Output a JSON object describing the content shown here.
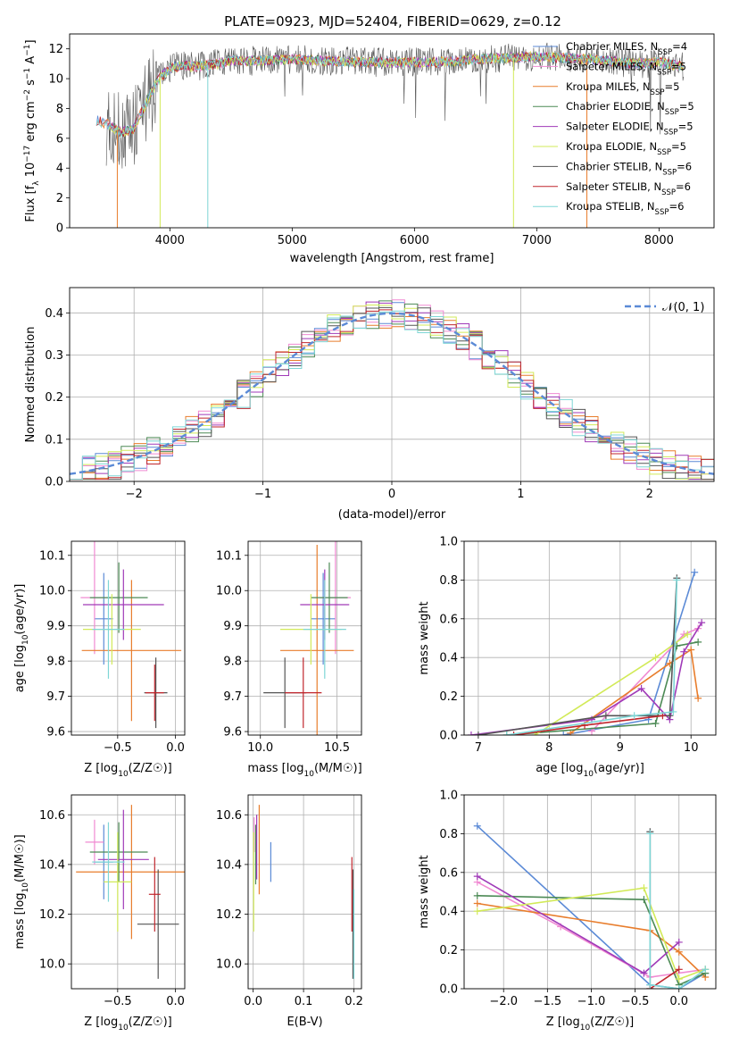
{
  "figure": {
    "title": "PLATE=0923, MJD=52404, FIBERID=0629, z=0.12"
  },
  "colors": {
    "chabrier_miles": "#5b8ad6",
    "salpeter_miles": "#f08ad2",
    "kroupa_miles": "#e87d2c",
    "chabrier_elodie": "#4c8a55",
    "salpeter_elodie": "#a03ab8",
    "kroupa_elodie": "#d2ea58",
    "chabrier_stelib": "#555555",
    "salpeter_stelib": "#c0262d",
    "kroupa_stelib": "#7ed6d6",
    "normal": "#5b8ad6",
    "grid": "#b0b0b0"
  },
  "chart_data": [
    {
      "id": "spectrum",
      "type": "line",
      "xlabel": "wavelength [Angstrom, rest frame]",
      "ylabel": "Flux [f_λ 10^-17 erg cm^-2 s^-1 A^-1]",
      "xlim": [
        3180,
        8450
      ],
      "ylim": [
        0,
        13
      ],
      "xticks": [
        4000,
        5000,
        6000,
        7000,
        8000
      ],
      "yticks": [
        0,
        2,
        4,
        6,
        8,
        10,
        12
      ],
      "grid": false,
      "legend_position": "upper right",
      "legend": [
        {
          "label": "Chabrier MILES, N",
          "sub": "SSP",
          "suffix": "=4",
          "color": "#5b8ad6"
        },
        {
          "label": "Salpeter MILES, N",
          "sub": "SSP",
          "suffix": "=5",
          "color": "#f08ad2"
        },
        {
          "label": "Kroupa MILES, N",
          "sub": "SSP",
          "suffix": "=5",
          "color": "#e87d2c"
        },
        {
          "label": "Chabrier ELODIE, N",
          "sub": "SSP",
          "suffix": "=5",
          "color": "#4c8a55"
        },
        {
          "label": "Salpeter ELODIE, N",
          "sub": "SSP",
          "suffix": "=5",
          "color": "#a03ab8"
        },
        {
          "label": "Kroupa ELODIE, N",
          "sub": "SSP",
          "suffix": "=5",
          "color": "#d2ea58"
        },
        {
          "label": "Chabrier STELIB, N",
          "sub": "SSP",
          "suffix": "=6",
          "color": "#555555"
        },
        {
          "label": "Salpeter STELIB, N",
          "sub": "SSP",
          "suffix": "=6",
          "color": "#c0262d"
        },
        {
          "label": "Kroupa STELIB, N",
          "sub": "SSP",
          "suffix": "=6",
          "color": "#7ed6d6"
        }
      ],
      "envelope": {
        "x": [
          3400,
          3500,
          3600,
          3700,
          3800,
          3900,
          4000,
          4100,
          4200,
          4300,
          4400,
          4500,
          4700,
          5000,
          5300,
          5600,
          5900,
          6200,
          6500,
          6800,
          7000,
          7200,
          7400,
          7600,
          7800,
          8000,
          8200
        ],
        "y": [
          7.2,
          6.9,
          6.4,
          6.6,
          8.3,
          9.9,
          10.7,
          10.9,
          10.8,
          10.9,
          11.0,
          11.2,
          11.2,
          11.3,
          11.2,
          11.1,
          11.1,
          11.1,
          11.3,
          11.4,
          11.5,
          11.4,
          11.3,
          11.2,
          11.0,
          11.1,
          10.8
        ]
      },
      "dropouts": [
        {
          "x": 3570,
          "color": "#e87d2c"
        },
        {
          "x": 3920,
          "color": "#d2ea58"
        },
        {
          "x": 4310,
          "color": "#7ed6d6"
        },
        {
          "x": 6810,
          "color": "#d2ea58"
        },
        {
          "x": 7410,
          "color": "#e87d2c"
        }
      ]
    },
    {
      "id": "residuals",
      "type": "line",
      "xlabel": "(data-model)/error",
      "ylabel": "Normed distribution",
      "xlim": [
        -2.5,
        2.5
      ],
      "ylim": [
        0,
        0.46
      ],
      "xticks": [
        -2,
        -1,
        0,
        1,
        2
      ],
      "xticklabels": [
        "−2",
        "−1",
        "0",
        "1",
        "2"
      ],
      "yticks": [
        0.0,
        0.1,
        0.2,
        0.3,
        0.4
      ],
      "yticklabels": [
        "0.0",
        "0.1",
        "0.2",
        "0.3",
        "0.4"
      ],
      "grid": true,
      "legend_position": "upper right",
      "legend": [
        {
          "label": "𝒩(0, 1)",
          "color": "#5b8ad6",
          "style": "dashed"
        }
      ],
      "bins": {
        "start": -2.5,
        "width": 0.1,
        "count": 50
      }
    },
    {
      "id": "age_vs_Z",
      "type": "scatter",
      "xlabel": "Z [log10(Z/Z☉)]",
      "ylabel": "age [log10(age/yr)]",
      "xlim": [
        -0.9,
        0.08
      ],
      "ylim": [
        9.59,
        10.14
      ],
      "xticks": [
        -0.5,
        0.0
      ],
      "xticklabels": [
        "−0.5",
        "0.0"
      ],
      "yticks": [
        9.6,
        9.7,
        9.8,
        9.9,
        10.0,
        10.1
      ],
      "yticklabels": [
        "9.6",
        "9.7",
        "9.8",
        "9.9",
        "10.0",
        "10.1"
      ],
      "grid": true,
      "points": [
        {
          "model": "chabrier_miles",
          "x": -0.62,
          "y": 9.92,
          "xerr": 0.08,
          "yerr": 0.13
        },
        {
          "model": "salpeter_miles",
          "x": -0.7,
          "y": 9.98,
          "xerr": 0.12,
          "yerr": 0.16
        },
        {
          "model": "kroupa_miles",
          "x": -0.38,
          "y": 9.83,
          "xerr": 0.43,
          "yerr": 0.2
        },
        {
          "model": "chabrier_elodie",
          "x": -0.49,
          "y": 9.98,
          "xerr": 0.25,
          "yerr": 0.1
        },
        {
          "model": "salpeter_elodie",
          "x": -0.45,
          "y": 9.96,
          "xerr": 0.35,
          "yerr": 0.1
        },
        {
          "model": "kroupa_elodie",
          "x": -0.55,
          "y": 9.89,
          "xerr": 0.25,
          "yerr": 0.1
        },
        {
          "model": "chabrier_stelib",
          "x": -0.17,
          "y": 9.71,
          "xerr": 0.1,
          "yerr": 0.1
        },
        {
          "model": "salpeter_stelib",
          "x": -0.18,
          "y": 9.71,
          "xerr": 0.08,
          "yerr": 0.08
        },
        {
          "model": "kroupa_stelib",
          "x": -0.58,
          "y": 9.89,
          "xerr": 0.14,
          "yerr": 0.14
        }
      ]
    },
    {
      "id": "age_vs_mass",
      "type": "scatter",
      "xlabel": "mass [log10(M/M☉)]",
      "ylabel": "",
      "xlim": [
        9.92,
        10.66
      ],
      "ylim": [
        9.59,
        10.14
      ],
      "xticks": [
        10.0,
        10.5
      ],
      "xticklabels": [
        "10.0",
        "10.5"
      ],
      "yticks": [
        9.6,
        9.7,
        9.8,
        9.9,
        10.0,
        10.1
      ],
      "yticklabels": [
        "9.6",
        "9.7",
        "9.8",
        "9.9",
        "10.0",
        "10.1"
      ],
      "grid": true,
      "points": [
        {
          "model": "chabrier_miles",
          "x": 10.41,
          "y": 9.92,
          "xerr": 0.08,
          "yerr": 0.13
        },
        {
          "model": "salpeter_miles",
          "x": 10.49,
          "y": 9.98,
          "xerr": 0.1,
          "yerr": 0.16
        },
        {
          "model": "kroupa_miles",
          "x": 10.37,
          "y": 9.83,
          "xerr": 0.24,
          "yerr": 0.3
        },
        {
          "model": "chabrier_elodie",
          "x": 10.45,
          "y": 9.98,
          "xerr": 0.12,
          "yerr": 0.1
        },
        {
          "model": "salpeter_elodie",
          "x": 10.42,
          "y": 9.96,
          "xerr": 0.16,
          "yerr": 0.1
        },
        {
          "model": "kroupa_elodie",
          "x": 10.33,
          "y": 9.89,
          "xerr": 0.2,
          "yerr": 0.1
        },
        {
          "model": "chabrier_stelib",
          "x": 10.16,
          "y": 9.71,
          "xerr": 0.14,
          "yerr": 0.1
        },
        {
          "model": "salpeter_stelib",
          "x": 10.28,
          "y": 9.71,
          "xerr": 0.12,
          "yerr": 0.1
        },
        {
          "model": "kroupa_stelib",
          "x": 10.42,
          "y": 9.89,
          "xerr": 0.14,
          "yerr": 0.14
        }
      ]
    },
    {
      "id": "weight_vs_age",
      "type": "line",
      "xlabel": "age [log10(age/yr)]",
      "ylabel": "mass weight",
      "xlim": [
        6.8,
        10.35
      ],
      "ylim": [
        0,
        1
      ],
      "xticks": [
        7,
        8,
        9,
        10
      ],
      "xticklabels": [
        "7",
        "8",
        "9",
        "10"
      ],
      "yticks": [
        0.0,
        0.2,
        0.4,
        0.6,
        0.8,
        1.0
      ],
      "yticklabels": [
        "0.0",
        "0.2",
        "0.4",
        "0.6",
        "0.8",
        "1.0"
      ],
      "grid": true,
      "series": [
        {
          "model": "chabrier_miles",
          "x": [
            8.2,
            9.4,
            10.05
          ],
          "y": [
            0.0,
            0.08,
            0.84
          ]
        },
        {
          "model": "salpeter_miles",
          "x": [
            8.6,
            9.9,
            10.1
          ],
          "y": [
            0.02,
            0.52,
            0.55
          ]
        },
        {
          "model": "kroupa_miles",
          "x": [
            8.3,
            9.7,
            10.0,
            10.1
          ],
          "y": [
            0.01,
            0.37,
            0.44,
            0.19
          ]
        },
        {
          "model": "chabrier_elodie",
          "x": [
            7.4,
            9.5,
            9.8,
            10.1
          ],
          "y": [
            0.0,
            0.06,
            0.46,
            0.48
          ]
        },
        {
          "model": "salpeter_elodie",
          "x": [
            6.9,
            8.6,
            9.3,
            9.7,
            9.9,
            10.15
          ],
          "y": [
            0.0,
            0.08,
            0.24,
            0.08,
            0.43,
            0.58
          ]
        },
        {
          "model": "kroupa_elodie",
          "x": [
            7.8,
            9.5,
            9.95
          ],
          "y": [
            0.0,
            0.4,
            0.52
          ]
        },
        {
          "model": "chabrier_stelib",
          "x": [
            7.0,
            8.8,
            9.7,
            9.8
          ],
          "y": [
            0.0,
            0.1,
            0.1,
            0.81
          ]
        },
        {
          "model": "salpeter_stelib",
          "x": [
            7.5,
            8.5,
            9.6
          ],
          "y": [
            0.0,
            0.05,
            0.1
          ]
        },
        {
          "model": "kroupa_stelib",
          "x": [
            7.4,
            9.2,
            9.75,
            9.8
          ],
          "y": [
            0.0,
            0.1,
            0.12,
            0.8
          ]
        }
      ]
    },
    {
      "id": "mass_vs_Z",
      "type": "scatter",
      "xlabel": "Z [log10(Z/Z☉)]",
      "ylabel": "mass [log10(M/M☉)]",
      "xlim": [
        -0.9,
        0.08
      ],
      "ylim": [
        9.9,
        10.68
      ],
      "xticks": [
        -0.5,
        0.0
      ],
      "xticklabels": [
        "−0.5",
        "0.0"
      ],
      "yticks": [
        10.0,
        10.2,
        10.4,
        10.6
      ],
      "yticklabels": [
        "10.0",
        "10.2",
        "10.4",
        "10.6"
      ],
      "grid": true,
      "points": [
        {
          "model": "chabrier_miles",
          "x": -0.62,
          "y": 10.41,
          "xerr": 0.08,
          "yerr": 0.15
        },
        {
          "model": "salpeter_miles",
          "x": -0.7,
          "y": 10.49,
          "xerr": 0.08,
          "yerr": 0.09
        },
        {
          "model": "kroupa_miles",
          "x": -0.38,
          "y": 10.37,
          "xerr": 0.48,
          "yerr": 0.27
        },
        {
          "model": "chabrier_elodie",
          "x": -0.49,
          "y": 10.45,
          "xerr": 0.25,
          "yerr": 0.12
        },
        {
          "model": "salpeter_elodie",
          "x": -0.45,
          "y": 10.42,
          "xerr": 0.22,
          "yerr": 0.2
        },
        {
          "model": "kroupa_elodie",
          "x": -0.5,
          "y": 10.33,
          "xerr": 0.12,
          "yerr": 0.2
        },
        {
          "model": "chabrier_stelib",
          "x": -0.15,
          "y": 10.16,
          "xerr": 0.18,
          "yerr": 0.22
        },
        {
          "model": "salpeter_stelib",
          "x": -0.18,
          "y": 10.28,
          "xerr": 0.05,
          "yerr": 0.15
        },
        {
          "model": "kroupa_stelib",
          "x": -0.58,
          "y": 10.41,
          "xerr": 0.14,
          "yerr": 0.16
        }
      ]
    },
    {
      "id": "mass_vs_ebv",
      "type": "scatter",
      "xlabel": "E(B-V)",
      "ylabel": "",
      "xlim": [
        -0.01,
        0.215
      ],
      "ylim": [
        9.9,
        10.68
      ],
      "xticks": [
        0.0,
        0.1,
        0.2
      ],
      "xticklabels": [
        "0.0",
        "0.1",
        "0.2"
      ],
      "yticks": [
        10.0,
        10.2,
        10.4,
        10.6
      ],
      "yticklabels": [
        "10.0",
        "10.2",
        "10.4",
        "10.6"
      ],
      "grid": true,
      "points": [
        {
          "model": "chabrier_miles",
          "x": 0.035,
          "y": 10.41,
          "yerr": 0.08
        },
        {
          "model": "salpeter_miles",
          "x": 0.002,
          "y": 10.52,
          "yerr": 0.07
        },
        {
          "model": "kroupa_miles",
          "x": 0.012,
          "y": 10.46,
          "yerr": 0.18
        },
        {
          "model": "chabrier_elodie",
          "x": 0.005,
          "y": 10.44,
          "yerr": 0.12
        },
        {
          "model": "salpeter_elodie",
          "x": 0.007,
          "y": 10.47,
          "yerr": 0.13
        },
        {
          "model": "kroupa_elodie",
          "x": 0.001,
          "y": 10.33,
          "yerr": 0.2
        },
        {
          "model": "chabrier_stelib",
          "x": 0.198,
          "y": 10.16,
          "yerr": 0.22
        },
        {
          "model": "salpeter_stelib",
          "x": 0.196,
          "y": 10.28,
          "yerr": 0.15
        },
        {
          "model": "kroupa_stelib",
          "x": 0.2,
          "y": 10.12,
          "yerr": 0.18
        }
      ]
    },
    {
      "id": "weight_vs_Z",
      "type": "line",
      "xlabel": "Z [log10(Z/Z☉)]",
      "ylabel": "mass weight",
      "xlim": [
        -2.45,
        0.42
      ],
      "ylim": [
        0,
        1
      ],
      "xticks": [
        -2.0,
        -1.5,
        -1.0,
        -0.5,
        0.0
      ],
      "xticklabels": [
        "−2.0",
        "−1.5",
        "−1.0",
        "−0.5",
        "0.0"
      ],
      "yticks": [
        0.0,
        0.2,
        0.4,
        0.6,
        0.8,
        1.0
      ],
      "yticklabels": [
        "0.0",
        "0.2",
        "0.4",
        "0.6",
        "0.8",
        "1.0"
      ],
      "grid": true,
      "series": [
        {
          "model": "chabrier_miles",
          "x": [
            -2.3,
            -0.33,
            0.0,
            0.3
          ],
          "y": [
            0.84,
            0.02,
            0.0,
            0.08
          ]
        },
        {
          "model": "salpeter_miles",
          "x": [
            -2.3,
            -1.35,
            -0.33,
            0.3
          ],
          "y": [
            0.55,
            0.32,
            0.06,
            0.1
          ]
        },
        {
          "model": "kroupa_miles",
          "x": [
            -2.3,
            -0.33,
            0.0,
            0.3
          ],
          "y": [
            0.44,
            0.3,
            0.19,
            0.06
          ]
        },
        {
          "model": "chabrier_elodie",
          "x": [
            -2.3,
            -0.4,
            0.0,
            0.3
          ],
          "y": [
            0.48,
            0.46,
            0.02,
            0.08
          ]
        },
        {
          "model": "salpeter_elodie",
          "x": [
            -2.3,
            -0.4,
            0.0
          ],
          "y": [
            0.58,
            0.08,
            0.24
          ]
        },
        {
          "model": "kroupa_elodie",
          "x": [
            -2.3,
            -0.4,
            0.0,
            0.3
          ],
          "y": [
            0.4,
            0.52,
            0.05,
            0.1
          ]
        },
        {
          "model": "chabrier_stelib",
          "x": [
            -0.33,
            -0.33
          ],
          "y": [
            0.0,
            0.81
          ]
        },
        {
          "model": "salpeter_stelib",
          "x": [
            -0.33,
            0.0
          ],
          "y": [
            0.0,
            0.1
          ]
        },
        {
          "model": "kroupa_stelib",
          "x": [
            -0.33,
            -0.33,
            0.0,
            0.3
          ],
          "y": [
            0.8,
            0.02,
            0.0,
            0.1
          ]
        }
      ]
    }
  ]
}
